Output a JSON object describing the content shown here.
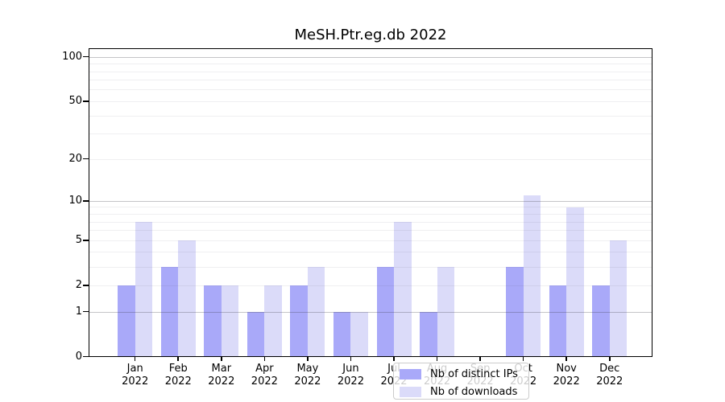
{
  "title": "MeSH.Ptr.eg.db 2022",
  "chart_data": {
    "type": "bar",
    "categories": [
      "Jan 2022",
      "Feb 2022",
      "Mar 2022",
      "Apr 2022",
      "May 2022",
      "Jun 2022",
      "Jul 2022",
      "Aug 2022",
      "Sep 2022",
      "Oct 2022",
      "Nov 2022",
      "Dec 2022"
    ],
    "series": [
      {
        "name": "Nb of distinct IPs",
        "color": "#a9a9f9",
        "values": [
          2,
          3,
          2,
          1,
          2,
          1,
          3,
          1,
          0,
          3,
          2,
          2
        ]
      },
      {
        "name": "Nb of downloads",
        "color": "#dbdbf9",
        "values": [
          7,
          5,
          2,
          2,
          3,
          1,
          7,
          3,
          0,
          11,
          9,
          5
        ]
      }
    ],
    "yscale": "log1p",
    "ylim": [
      0,
      115
    ],
    "yticks": [
      0,
      1,
      2,
      5,
      10,
      20,
      50,
      100
    ],
    "major_gridlines": [
      1,
      10,
      100
    ],
    "minor_gridlines": [
      2,
      3,
      4,
      5,
      6,
      7,
      8,
      9,
      20,
      30,
      40,
      50,
      60,
      70,
      80,
      90
    ],
    "grid": true,
    "legend_position": "lower center",
    "colors": {
      "background": "#ffffff",
      "axis": "#000000"
    }
  }
}
